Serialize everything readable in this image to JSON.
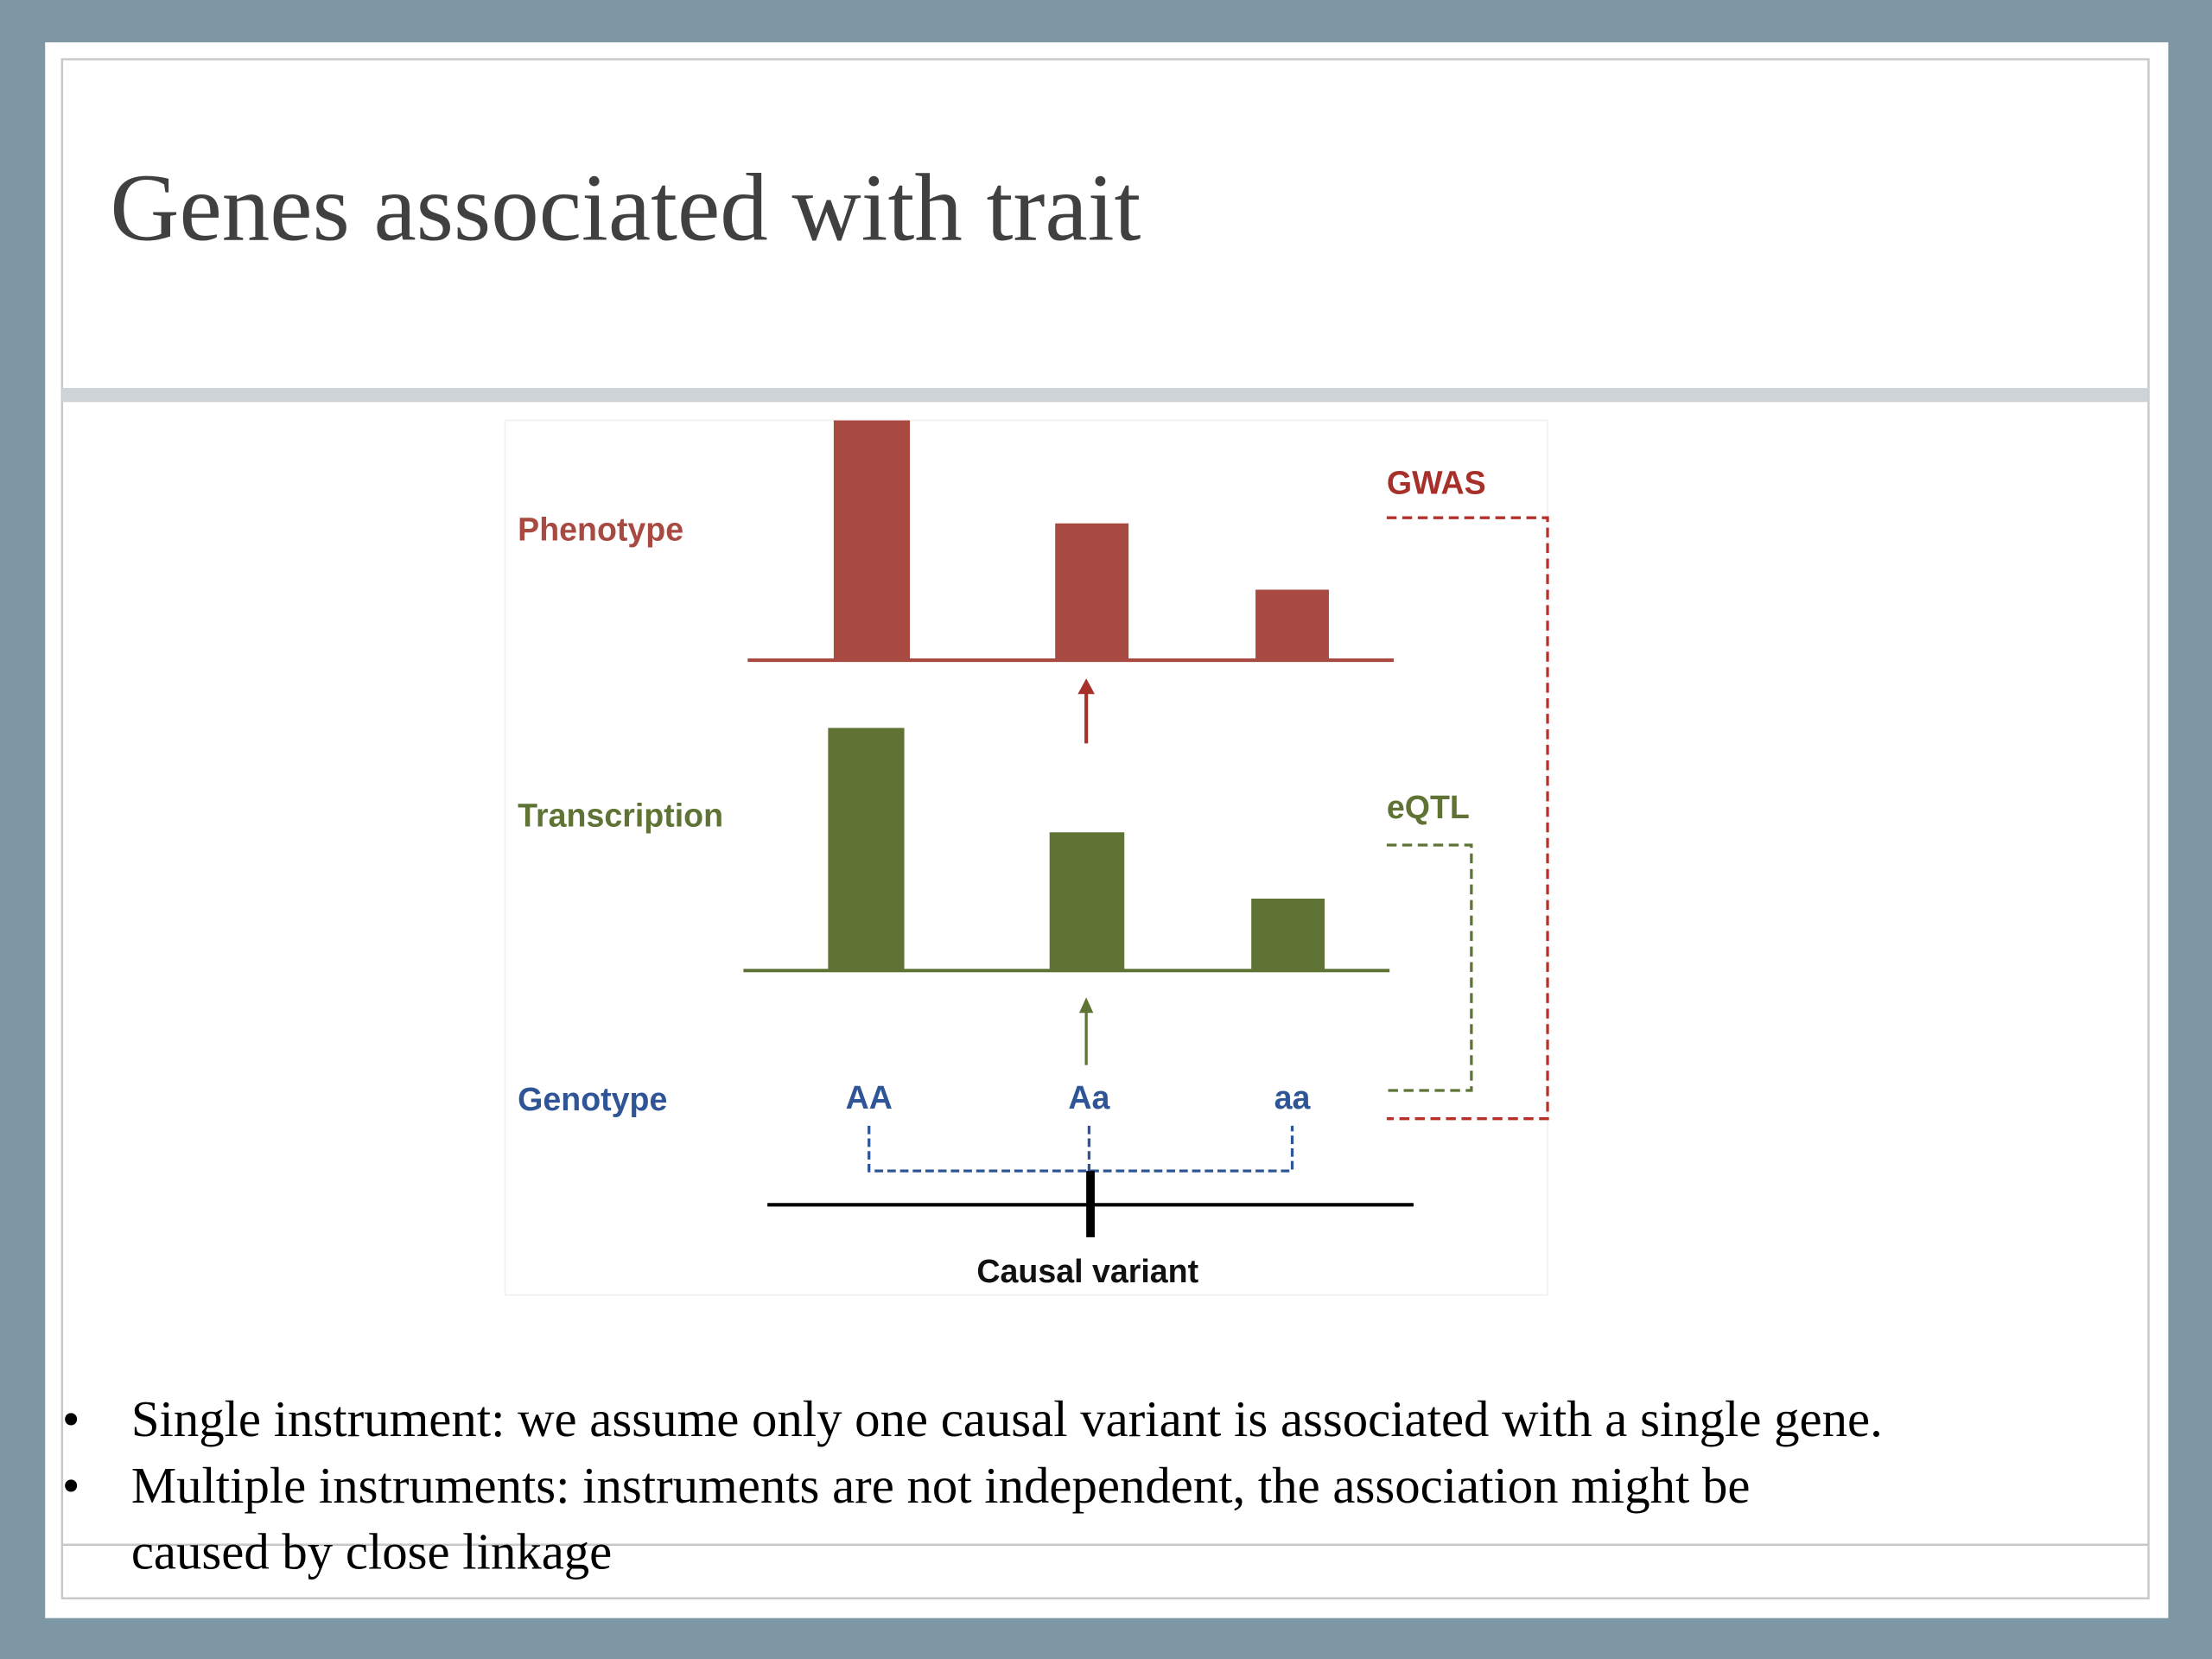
{
  "title": "Genes associated with trait",
  "diagram": {
    "rows": {
      "phenotype": "Phenotype",
      "transcription": "Transcription",
      "genotype": "Genotype"
    },
    "genotypes": [
      "AA",
      "Aa",
      "aa"
    ],
    "gwas": "GWAS",
    "eqtl": "eQTL",
    "causal_variant": "Causal variant"
  },
  "bullets": [
    "Single instrument: we assume only one causal variant is associated with a single gene.",
    "Multiple instruments: instruments are not independent, the association might be",
    "caused by close linkage"
  ]
}
